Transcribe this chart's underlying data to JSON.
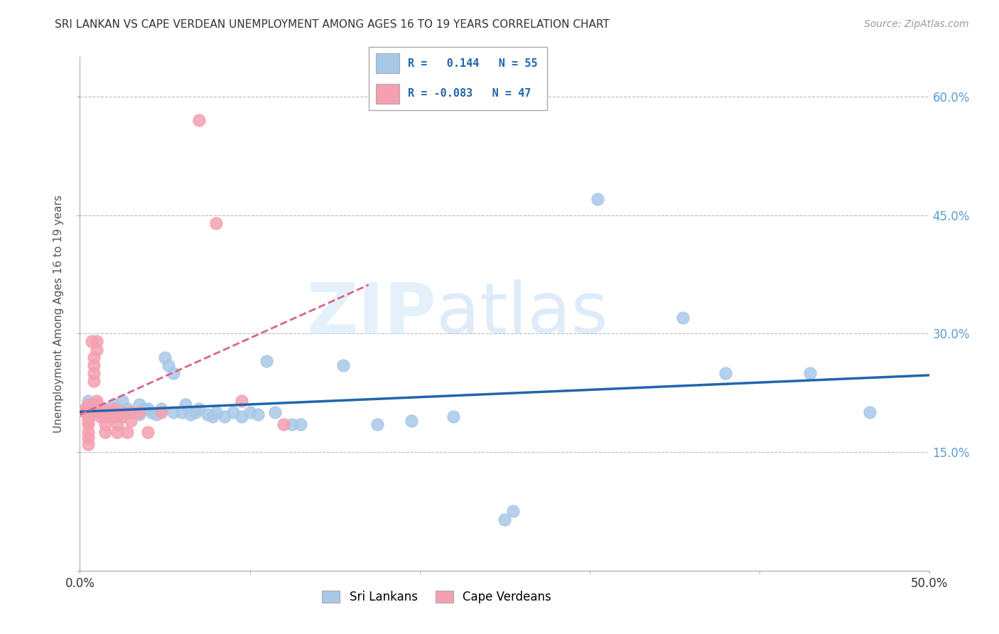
{
  "title": "SRI LANKAN VS CAPE VERDEAN UNEMPLOYMENT AMONG AGES 16 TO 19 YEARS CORRELATION CHART",
  "source": "Source: ZipAtlas.com",
  "ylabel": "Unemployment Among Ages 16 to 19 years",
  "xlim": [
    0.0,
    0.5
  ],
  "ylim": [
    0.0,
    0.65
  ],
  "xticks": [
    0.0,
    0.1,
    0.2,
    0.3,
    0.4,
    0.5
  ],
  "xticklabels": [
    "0.0%",
    "",
    "",
    "",
    "",
    "50.0%"
  ],
  "ytick_vals": [
    0.0,
    0.15,
    0.3,
    0.45,
    0.6
  ],
  "ytick_labels": [
    "",
    "15.0%",
    "30.0%",
    "45.0%",
    "60.0%"
  ],
  "sri_r": 0.144,
  "sri_n": 55,
  "cape_r": -0.083,
  "cape_n": 47,
  "sri_color": "#a8c8e8",
  "cape_color": "#f4a0b0",
  "sri_line_color": "#2166ac",
  "cape_line_color": "#d9648a",
  "background_color": "#ffffff",
  "grid_color": "#bbbbbb",
  "legend_sri_color": "#a8c8e8",
  "legend_cape_color": "#f4a0b0",
  "sri_lankans": [
    [
      0.005,
      0.205
    ],
    [
      0.005,
      0.215
    ],
    [
      0.005,
      0.2
    ],
    [
      0.008,
      0.21
    ],
    [
      0.01,
      0.205
    ],
    [
      0.012,
      0.2
    ],
    [
      0.015,
      0.198
    ],
    [
      0.015,
      0.205
    ],
    [
      0.018,
      0.202
    ],
    [
      0.02,
      0.21
    ],
    [
      0.02,
      0.2
    ],
    [
      0.022,
      0.205
    ],
    [
      0.025,
      0.215
    ],
    [
      0.025,
      0.2
    ],
    [
      0.028,
      0.205
    ],
    [
      0.03,
      0.2
    ],
    [
      0.035,
      0.21
    ],
    [
      0.035,
      0.198
    ],
    [
      0.038,
      0.205
    ],
    [
      0.04,
      0.205
    ],
    [
      0.042,
      0.2
    ],
    [
      0.045,
      0.198
    ],
    [
      0.048,
      0.205
    ],
    [
      0.05,
      0.27
    ],
    [
      0.052,
      0.26
    ],
    [
      0.055,
      0.25
    ],
    [
      0.055,
      0.2
    ],
    [
      0.06,
      0.2
    ],
    [
      0.062,
      0.21
    ],
    [
      0.065,
      0.198
    ],
    [
      0.068,
      0.2
    ],
    [
      0.07,
      0.205
    ],
    [
      0.075,
      0.198
    ],
    [
      0.078,
      0.195
    ],
    [
      0.08,
      0.2
    ],
    [
      0.085,
      0.195
    ],
    [
      0.09,
      0.2
    ],
    [
      0.095,
      0.195
    ],
    [
      0.1,
      0.2
    ],
    [
      0.105,
      0.198
    ],
    [
      0.11,
      0.265
    ],
    [
      0.115,
      0.2
    ],
    [
      0.125,
      0.185
    ],
    [
      0.13,
      0.185
    ],
    [
      0.155,
      0.26
    ],
    [
      0.175,
      0.185
    ],
    [
      0.195,
      0.19
    ],
    [
      0.22,
      0.195
    ],
    [
      0.25,
      0.065
    ],
    [
      0.255,
      0.075
    ],
    [
      0.305,
      0.47
    ],
    [
      0.355,
      0.32
    ],
    [
      0.38,
      0.25
    ],
    [
      0.43,
      0.25
    ],
    [
      0.465,
      0.2
    ]
  ],
  "cape_verdeans": [
    [
      0.003,
      0.205
    ],
    [
      0.003,
      0.2
    ],
    [
      0.005,
      0.21
    ],
    [
      0.005,
      0.205
    ],
    [
      0.005,
      0.2
    ],
    [
      0.005,
      0.198
    ],
    [
      0.005,
      0.195
    ],
    [
      0.005,
      0.19
    ],
    [
      0.005,
      0.185
    ],
    [
      0.005,
      0.175
    ],
    [
      0.005,
      0.168
    ],
    [
      0.005,
      0.16
    ],
    [
      0.007,
      0.29
    ],
    [
      0.008,
      0.27
    ],
    [
      0.008,
      0.26
    ],
    [
      0.008,
      0.25
    ],
    [
      0.008,
      0.24
    ],
    [
      0.01,
      0.29
    ],
    [
      0.01,
      0.28
    ],
    [
      0.01,
      0.215
    ],
    [
      0.01,
      0.21
    ],
    [
      0.012,
      0.2
    ],
    [
      0.012,
      0.195
    ],
    [
      0.013,
      0.205
    ],
    [
      0.015,
      0.2
    ],
    [
      0.015,
      0.195
    ],
    [
      0.015,
      0.185
    ],
    [
      0.015,
      0.175
    ],
    [
      0.018,
      0.2
    ],
    [
      0.018,
      0.195
    ],
    [
      0.02,
      0.205
    ],
    [
      0.02,
      0.2
    ],
    [
      0.02,
      0.195
    ],
    [
      0.022,
      0.185
    ],
    [
      0.022,
      0.175
    ],
    [
      0.025,
      0.2
    ],
    [
      0.025,
      0.195
    ],
    [
      0.028,
      0.175
    ],
    [
      0.03,
      0.2
    ],
    [
      0.03,
      0.19
    ],
    [
      0.035,
      0.2
    ],
    [
      0.04,
      0.175
    ],
    [
      0.048,
      0.2
    ],
    [
      0.07,
      0.57
    ],
    [
      0.08,
      0.44
    ],
    [
      0.095,
      0.215
    ],
    [
      0.12,
      0.185
    ]
  ]
}
